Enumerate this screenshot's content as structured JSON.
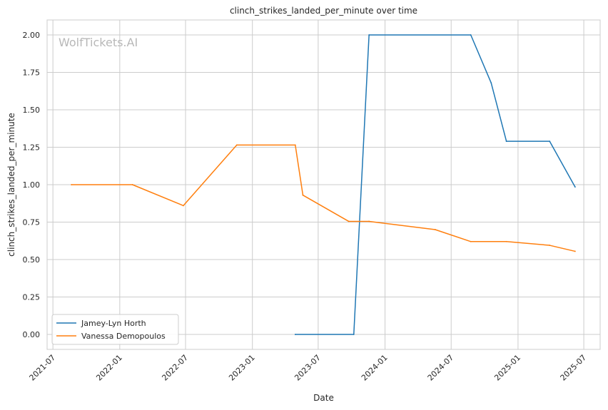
{
  "chart_data": {
    "type": "line",
    "title": "clinch_strikes_landed_per_minute over time",
    "xlabel": "Date",
    "ylabel": "clinch_strikes_landed_per_minute",
    "watermark": "WolfTickets.AI",
    "xlim": [
      "2021-06-15",
      "2025-08-15"
    ],
    "ylim": [
      -0.1,
      2.1
    ],
    "x_ticks": [
      "2021-07",
      "2022-01",
      "2022-07",
      "2023-01",
      "2023-07",
      "2024-01",
      "2024-07",
      "2025-01",
      "2025-07"
    ],
    "y_ticks": [
      "0.00",
      "0.25",
      "0.50",
      "0.75",
      "1.00",
      "1.25",
      "1.50",
      "1.75",
      "2.00"
    ],
    "grid": true,
    "legend": "lower-left",
    "series": [
      {
        "name": "Jamey-Lyn Horth",
        "color": "#1f77b4",
        "points": [
          {
            "x": "2023-04-29",
            "y": 0.0
          },
          {
            "x": "2023-10-07",
            "y": 0.0
          },
          {
            "x": "2023-11-18",
            "y": 2.0
          },
          {
            "x": "2024-08-24",
            "y": 2.0
          },
          {
            "x": "2024-10-19",
            "y": 1.68
          },
          {
            "x": "2024-11-30",
            "y": 1.29
          },
          {
            "x": "2025-03-29",
            "y": 1.29
          },
          {
            "x": "2025-06-07",
            "y": 0.985
          }
        ]
      },
      {
        "name": "Vanessa Demopoulos",
        "color": "#ff7f0e",
        "points": [
          {
            "x": "2021-08-21",
            "y": 1.0
          },
          {
            "x": "2022-02-05",
            "y": 1.0
          },
          {
            "x": "2022-06-25",
            "y": 0.86
          },
          {
            "x": "2022-11-19",
            "y": 1.265
          },
          {
            "x": "2023-04-29",
            "y": 1.265
          },
          {
            "x": "2023-05-20",
            "y": 0.93
          },
          {
            "x": "2023-09-23",
            "y": 0.755
          },
          {
            "x": "2023-11-18",
            "y": 0.755
          },
          {
            "x": "2024-05-18",
            "y": 0.7
          },
          {
            "x": "2024-08-24",
            "y": 0.62
          },
          {
            "x": "2024-11-30",
            "y": 0.62
          },
          {
            "x": "2025-03-29",
            "y": 0.595
          },
          {
            "x": "2025-06-07",
            "y": 0.555
          }
        ]
      }
    ]
  }
}
